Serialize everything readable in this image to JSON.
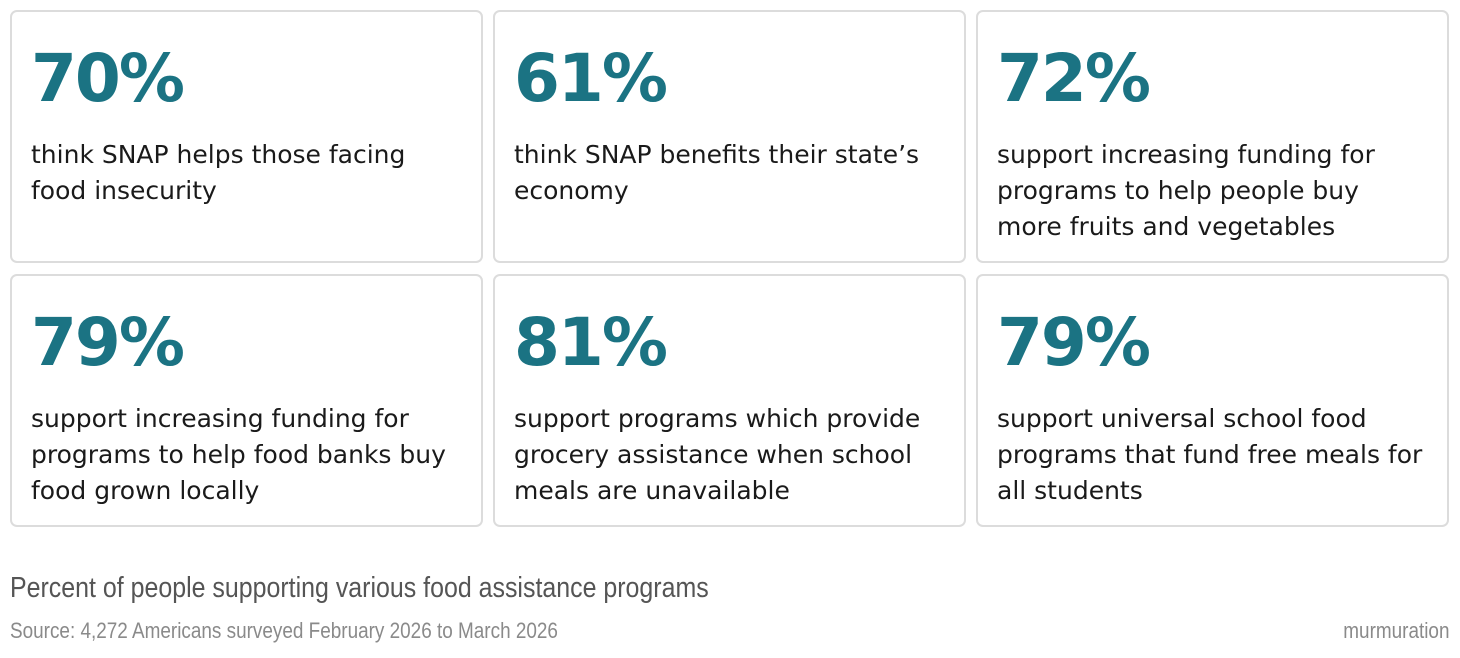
{
  "chart_data": {
    "type": "table",
    "title": "Percent of people supporting various food assistance programs",
    "source": "Source: 4,272 Americans surveyed February 2026 to March 2026",
    "unit": "%",
    "items": [
      {
        "value": "70%",
        "label": "think SNAP helps those facing food insecurity"
      },
      {
        "value": "61%",
        "label": "think SNAP benefits their state’s economy"
      },
      {
        "value": "72%",
        "label": "support increasing funding for programs to help people buy more fruits and vegetables"
      },
      {
        "value": "79%",
        "label": "support increasing funding for programs to help food banks buy food grown locally"
      },
      {
        "value": "81%",
        "label": "support programs which provide grocery assistance when school meals are unavailable"
      },
      {
        "value": "79%",
        "label": "support universal school food programs that fund free meals for all students"
      }
    ]
  },
  "brand": "murmuration",
  "colors": {
    "accent": "#1b7383",
    "text": "#1a1a1a",
    "caption": "#555555",
    "muted": "#8a8a8a",
    "card_border": "#dcdcdc"
  }
}
